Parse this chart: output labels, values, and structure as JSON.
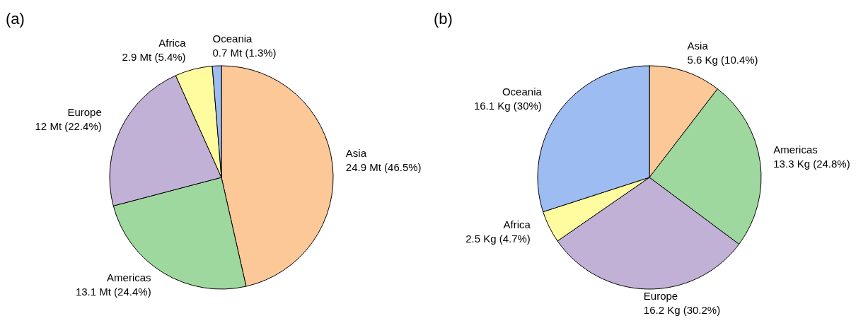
{
  "chart_data": [
    {
      "type": "pie",
      "title": "(a)",
      "categories": [
        "Asia",
        "Americas",
        "Europe",
        "Africa",
        "Oceania"
      ],
      "values": [
        24.9,
        13.1,
        12,
        2.9,
        0.7
      ],
      "value_labels": [
        "24.9 Mt (46.5%)",
        "13.1 Mt (24.4%)",
        "12 Mt (22.4%)",
        "2.9 Mt (5.4%)",
        "0.7 Mt (1.3%)"
      ],
      "colors": [
        "#fcc898",
        "#9fd89e",
        "#c2b1d6",
        "#fffca0",
        "#9dbcf2"
      ]
    },
    {
      "type": "pie",
      "title": "(b)",
      "categories": [
        "Asia",
        "Americas",
        "Europe",
        "Africa",
        "Oceania"
      ],
      "values": [
        5.6,
        13.3,
        16.2,
        2.5,
        16.1
      ],
      "value_labels": [
        "5.6 Kg (10.4%)",
        "13.3 Kg (24.8%)",
        "16.2 Kg (30.2%)",
        "2.5 Kg (4.7%)",
        "16.1 Kg (30%)"
      ],
      "colors": [
        "#fcc898",
        "#9fd89e",
        "#c2b1d6",
        "#fffca0",
        "#9dbcf2"
      ]
    }
  ]
}
